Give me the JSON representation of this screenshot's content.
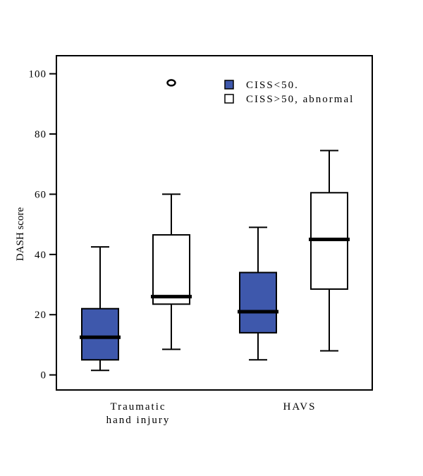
{
  "colors": {
    "low_group_fill": "#3e58ac",
    "high_group_fill": "#ffffff",
    "stroke": "#000000"
  },
  "chart_data": {
    "type": "boxplot",
    "ylabel": "DASH score",
    "ylim": [
      -5,
      106
    ],
    "yticks": [
      0,
      20,
      40,
      60,
      80,
      100
    ],
    "groups": [
      {
        "lines": [
          "Traumatic",
          "hand injury"
        ]
      },
      {
        "lines": [
          "HAVS"
        ]
      }
    ],
    "legend": {
      "position": "top-right",
      "entries": [
        {
          "label": "CISS<50.",
          "color": "#3e58ac"
        },
        {
          "label": "CISS>50, abnormal",
          "color": "#ffffff"
        }
      ]
    },
    "boxes": [
      {
        "group": 0,
        "series": 0,
        "whisker_low": 1.5,
        "q1": 5,
        "median": 12.5,
        "q3": 22,
        "whisker_high": 42.5,
        "outliers": []
      },
      {
        "group": 0,
        "series": 1,
        "whisker_low": 8.5,
        "q1": 23.5,
        "median": 26,
        "q3": 46.5,
        "whisker_high": 60,
        "outliers": [
          97
        ]
      },
      {
        "group": 1,
        "series": 0,
        "whisker_low": 5,
        "q1": 14,
        "median": 21,
        "q3": 34,
        "whisker_high": 49,
        "outliers": []
      },
      {
        "group": 1,
        "series": 1,
        "whisker_low": 8,
        "q1": 28.5,
        "median": 45,
        "q3": 60.5,
        "whisker_high": 74.5,
        "outliers": []
      }
    ]
  }
}
